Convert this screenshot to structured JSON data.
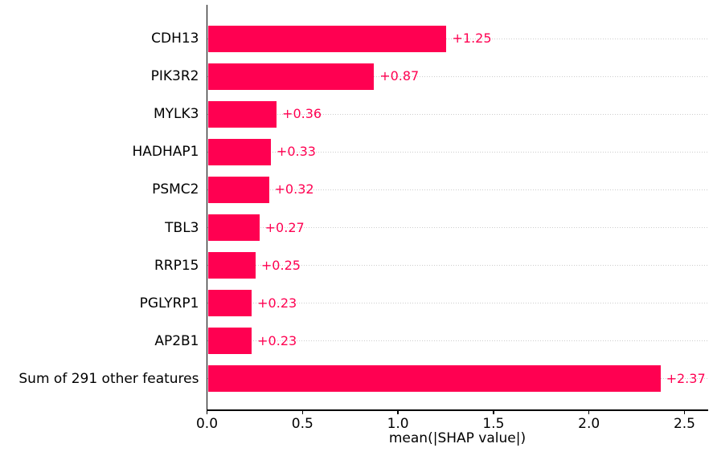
{
  "chart_data": {
    "type": "bar",
    "orientation": "horizontal",
    "xlabel": "mean(|SHAP value|)",
    "categories": [
      "CDH13",
      "PIK3R2",
      "MYLK3",
      "HADHAP1",
      "PSMC2",
      "TBL3",
      "RRP15",
      "PGLYRP1",
      "AP2B1",
      "Sum of 291 other features"
    ],
    "values": [
      1.25,
      0.87,
      0.36,
      0.33,
      0.32,
      0.27,
      0.25,
      0.23,
      0.23,
      2.37
    ],
    "value_labels": [
      "+1.25",
      "+0.87",
      "+0.36",
      "+0.33",
      "+0.32",
      "+0.27",
      "+0.25",
      "+0.23",
      "+0.23",
      "+2.37"
    ],
    "x_tick_values": [
      0.0,
      0.5,
      1.0,
      1.5,
      2.0,
      2.5
    ],
    "x_tick_labels": [
      "0.0",
      "0.5",
      "1.0",
      "1.5",
      "2.0",
      "2.5"
    ],
    "xlim": [
      0,
      2.62
    ],
    "bar_color": "#ff0051",
    "value_label_color": "#ff0051",
    "axis_color": "#000000",
    "gridline_color": "#cccccc",
    "grid": "horizontal-dotted",
    "legend_position": "none"
  }
}
